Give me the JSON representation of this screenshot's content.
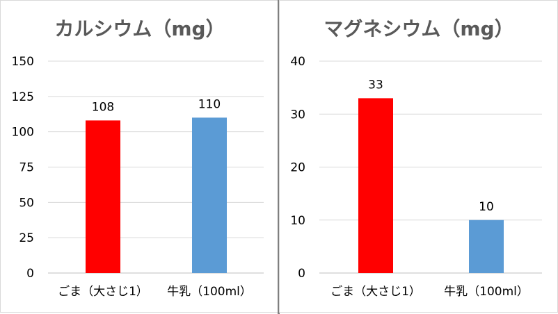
{
  "chart_data": [
    {
      "type": "bar",
      "title": "カルシウム（mg）",
      "categories": [
        "ごま（大さじ1）",
        "牛乳（100ml）"
      ],
      "values": [
        108,
        110
      ],
      "colors": [
        "#ff0000",
        "#5b9bd5"
      ],
      "yticks": [
        0,
        25,
        50,
        75,
        100,
        125,
        150
      ],
      "ylim": [
        0,
        150
      ],
      "grid": true,
      "legend": "none",
      "data_labels": true
    },
    {
      "type": "bar",
      "title": "マグネシウム（mg）",
      "categories": [
        "ごま（大さじ1）",
        "牛乳（100ml）"
      ],
      "values": [
        33,
        10
      ],
      "colors": [
        "#ff0000",
        "#5b9bd5"
      ],
      "yticks": [
        0,
        10,
        20,
        30,
        40
      ],
      "ylim": [
        0,
        40
      ],
      "grid": true,
      "legend": "none",
      "data_labels": true
    }
  ]
}
